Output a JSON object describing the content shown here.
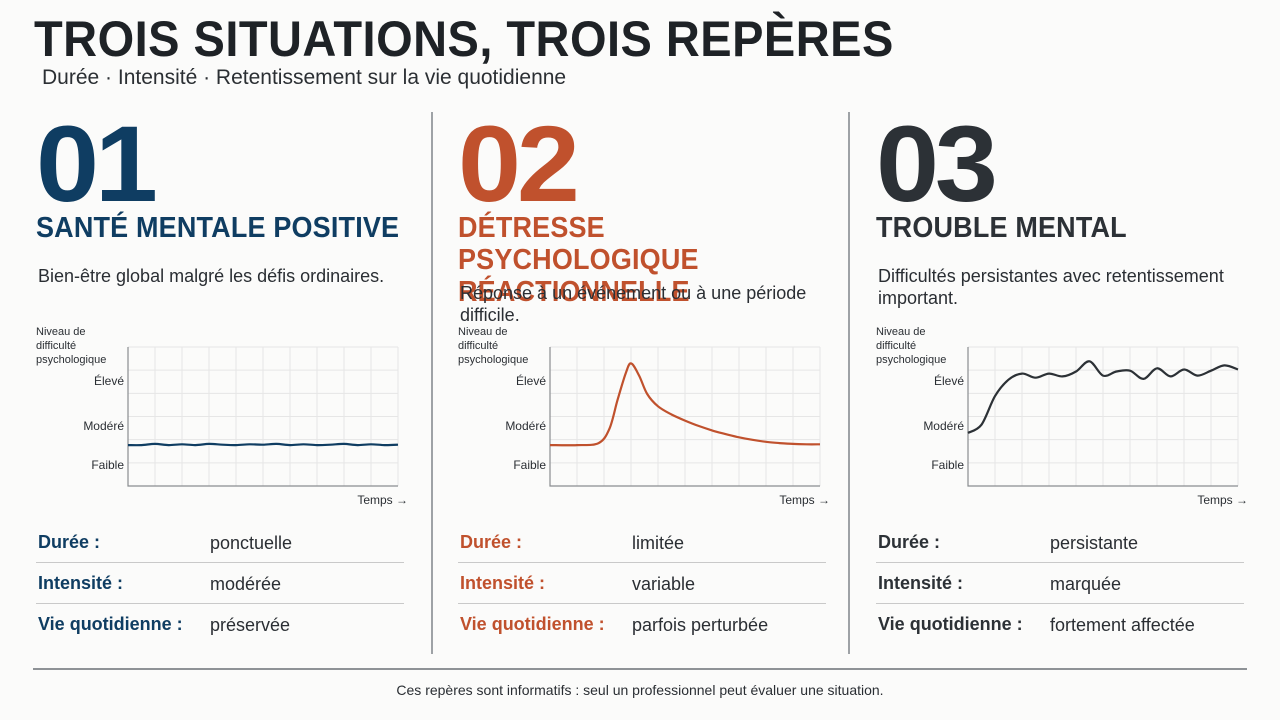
{
  "header": {
    "title": "TROIS SITUATIONS, TROIS REPÈRES",
    "subtitle": "Durée · Intensité · Retentissement sur la vie quotidienne"
  },
  "colors": {
    "col1": "#0f3d62",
    "col2": "#c0512d",
    "col3": "#2c3136"
  },
  "columns": [
    {
      "number": "01",
      "heading": "SANTÉ MENTALE POSITIVE",
      "description": "Bien-être global malgré les défis ordinaires.",
      "rows": [
        {
          "label": "Durée :",
          "value": "ponctuelle"
        },
        {
          "label": "Intensité :",
          "value": "modérée"
        },
        {
          "label": "Vie quotidienne :",
          "value": "préservée"
        }
      ]
    },
    {
      "number": "02",
      "heading": "DÉTRESSE PSYCHOLOGIQUE RÉACTIONNELLE",
      "description": "Réponse à un événement ou à une période difficile.",
      "rows": [
        {
          "label": "Durée :",
          "value": "limitée"
        },
        {
          "label": "Intensité :",
          "value": "variable"
        },
        {
          "label": "Vie quotidienne :",
          "value": "parfois perturbée"
        }
      ]
    },
    {
      "number": "03",
      "heading": "TROUBLE MENTAL",
      "description": "Difficultés persistantes avec retentissement important.",
      "rows": [
        {
          "label": "Durée :",
          "value": "persistante"
        },
        {
          "label": "Intensité :",
          "value": "marquée"
        },
        {
          "label": "Vie quotidienne :",
          "value": "fortement affectée"
        }
      ]
    }
  ],
  "chart_data": [
    {
      "type": "line",
      "ylabel": "Niveau de difficulté psychologique",
      "xlabel": "Temps →",
      "yticks": [
        "Faible",
        "Modéré",
        "Élevé"
      ],
      "ylim": [
        0,
        3.4
      ],
      "x": [
        0,
        5,
        10,
        15,
        20,
        25,
        30,
        35,
        40,
        45,
        50,
        55,
        60,
        65,
        70,
        75,
        80,
        85,
        90,
        95,
        100
      ],
      "series": [
        {
          "values": [
            1.0,
            1.0,
            1.03,
            1.0,
            1.02,
            1.0,
            1.03,
            1.01,
            1.0,
            1.02,
            1.01,
            1.03,
            1.0,
            1.02,
            1.0,
            1.01,
            1.03,
            1.0,
            1.02,
            1.0,
            1.01
          ]
        }
      ]
    },
    {
      "type": "line",
      "ylabel": "Niveau de difficulté psychologique",
      "xlabel": "Temps →",
      "yticks": [
        "Faible",
        "Modéré",
        "Élevé"
      ],
      "ylim": [
        0,
        3.4
      ],
      "x": [
        0,
        10,
        18,
        22,
        25,
        28,
        30,
        33,
        36,
        40,
        45,
        50,
        55,
        60,
        65,
        70,
        75,
        80,
        85,
        90,
        95,
        100
      ],
      "series": [
        {
          "values": [
            1.0,
            1.0,
            1.05,
            1.4,
            2.1,
            2.75,
            3.0,
            2.7,
            2.25,
            1.95,
            1.75,
            1.6,
            1.47,
            1.36,
            1.27,
            1.19,
            1.13,
            1.08,
            1.05,
            1.03,
            1.02,
            1.02
          ]
        }
      ]
    },
    {
      "type": "line",
      "ylabel": "Niveau de difficulté psychologique",
      "xlabel": "Temps →",
      "yticks": [
        "Faible",
        "Modéré",
        "Élevé"
      ],
      "ylim": [
        0,
        3.4
      ],
      "x": [
        0,
        5,
        10,
        15,
        20,
        25,
        30,
        35,
        40,
        45,
        50,
        55,
        60,
        65,
        70,
        75,
        80,
        85,
        90,
        95,
        100
      ],
      "series": [
        {
          "values": [
            1.3,
            1.5,
            2.2,
            2.6,
            2.75,
            2.65,
            2.75,
            2.68,
            2.8,
            3.05,
            2.7,
            2.8,
            2.82,
            2.62,
            2.88,
            2.68,
            2.85,
            2.7,
            2.82,
            2.95,
            2.85
          ]
        }
      ]
    }
  ],
  "footer": {
    "note": "Ces repères sont informatifs : seul un professionnel peut évaluer une situation."
  }
}
